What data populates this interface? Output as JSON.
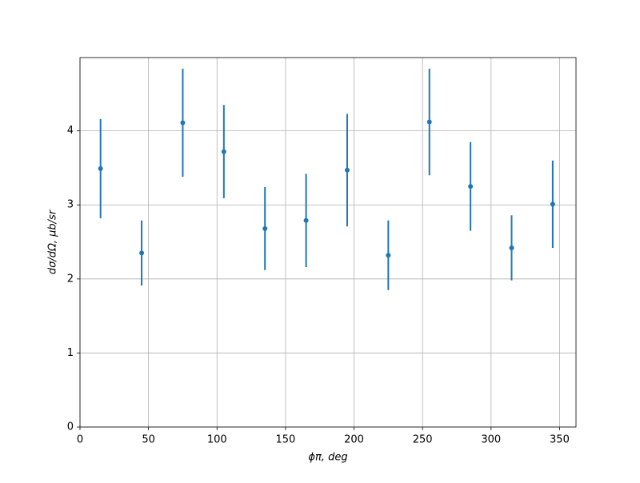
{
  "chart_data": {
    "type": "errorbar",
    "x_label": "ϕπ, deg",
    "y_label": "dσ/dΩ, μb/sr",
    "x": [
      15,
      45,
      75,
      105,
      135,
      165,
      195,
      225,
      255,
      285,
      315,
      345
    ],
    "values": [
      3.49,
      2.35,
      4.11,
      3.72,
      2.68,
      2.79,
      3.47,
      2.32,
      4.12,
      3.25,
      2.42,
      3.01
    ],
    "errors": [
      0.67,
      0.44,
      0.73,
      0.63,
      0.56,
      0.63,
      0.76,
      0.47,
      0.72,
      0.6,
      0.44,
      0.59
    ],
    "color": "#1f77b4",
    "xlim": [
      0,
      362
    ],
    "ylim": [
      0,
      4.99
    ],
    "xticks": [
      0,
      50,
      100,
      150,
      200,
      250,
      300,
      350
    ],
    "yticks": [
      0,
      1,
      2,
      3,
      4
    ],
    "grid": true
  }
}
